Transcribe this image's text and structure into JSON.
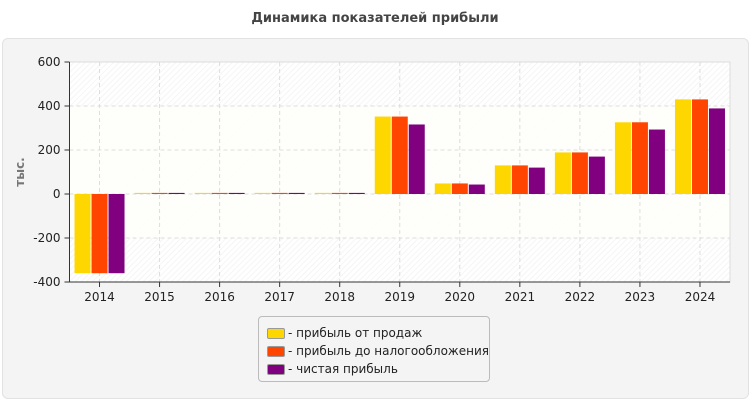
{
  "chart_data": {
    "type": "bar",
    "title": "Динамика показателей прибыли",
    "ylabel": "тыс.",
    "xlabel": "",
    "ylim": [
      -400,
      600
    ],
    "yticks": [
      -400,
      -200,
      0,
      200,
      400,
      600
    ],
    "grid": true,
    "legend_position": "bottom",
    "categories": [
      "2014",
      "2015",
      "2016",
      "2017",
      "2018",
      "2019",
      "2020",
      "2021",
      "2022",
      "2023",
      "2024"
    ],
    "series": [
      {
        "name": "прибыль от продаж",
        "color": "#FFD700",
        "values": [
          -360,
          5,
          5,
          5,
          5,
          352,
          48,
          130,
          189,
          326,
          430
        ]
      },
      {
        "name": "прибыль до налогообложения",
        "color": "#FF4500",
        "values": [
          -360,
          5,
          5,
          5,
          5,
          352,
          48,
          130,
          189,
          326,
          430
        ]
      },
      {
        "name": "чистая прибыль",
        "color": "#800080",
        "values": [
          -360,
          5,
          5,
          5,
          5,
          316,
          43,
          120,
          170,
          293,
          389
        ]
      }
    ]
  }
}
